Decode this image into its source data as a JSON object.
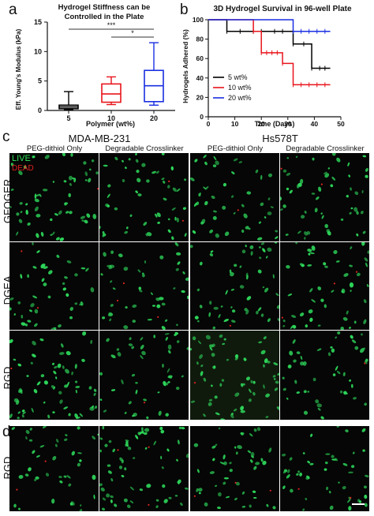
{
  "panel_labels": {
    "a": "a",
    "b": "b",
    "c": "c",
    "d": "d"
  },
  "chart_data": [
    {
      "type": "box",
      "title": "Hydrogel Stiffness can be Controlled in the Plate",
      "title_line1": "Hydrogel Stiffness can be",
      "title_line2": "Controlled in the Plate",
      "xlabel": "Polymer (wt%)",
      "ylabel": "Eff. Young's Modulus (kPa)",
      "ylim": [
        0,
        15
      ],
      "yticks": [
        "0",
        "5",
        "10",
        "15"
      ],
      "categories": [
        "5",
        "10",
        "20"
      ],
      "colors": [
        "#000000",
        "#e8141b",
        "#1a2fe0"
      ],
      "boxes": [
        {
          "category": "5",
          "min": 0.1,
          "q1": 0.3,
          "median": 0.6,
          "q3": 0.9,
          "max": 3.2
        },
        {
          "category": "10",
          "min": 1.0,
          "q1": 1.4,
          "median": 2.8,
          "q3": 4.5,
          "max": 5.7
        },
        {
          "category": "20",
          "min": 0.9,
          "q1": 1.5,
          "median": 4.2,
          "q3": 6.8,
          "max": 11.5
        }
      ],
      "significance": [
        {
          "from": "5",
          "to": "20",
          "label": "***"
        },
        {
          "from": "10",
          "to": "20",
          "label": "*"
        }
      ]
    },
    {
      "type": "line",
      "title": "3D Hydrogel Survival in 96-well Plate",
      "xlabel": "Time (Days)",
      "ylabel": "Hydrogels Adhered (%)",
      "xlim": [
        0,
        50
      ],
      "ylim": [
        0,
        100
      ],
      "xticks": [
        "0",
        "10",
        "20",
        "30",
        "40",
        "50"
      ],
      "yticks": [
        "0",
        "20",
        "40",
        "60",
        "80",
        "100"
      ],
      "legend_position": "lower-left",
      "series": [
        {
          "name": "5 wt%",
          "color": "#000000",
          "steps": [
            [
              0,
              100
            ],
            [
              7,
              88
            ],
            [
              32,
              75
            ],
            [
              39,
              50
            ],
            [
              46,
              50
            ]
          ],
          "censor_x": [
            7,
            12,
            17,
            20,
            25,
            28,
            32,
            36,
            39,
            42,
            44
          ]
        },
        {
          "name": "10 wt%",
          "color": "#e8141b",
          "steps": [
            [
              0,
              100
            ],
            [
              17,
              88
            ],
            [
              20,
              66
            ],
            [
              28,
              55
            ],
            [
              32,
              33
            ],
            [
              46,
              33
            ]
          ],
          "censor_x": [
            17,
            20,
            22,
            24,
            26,
            28,
            32,
            35,
            38,
            41,
            44
          ]
        },
        {
          "name": "20 wt%",
          "color": "#1a2fe0",
          "steps": [
            [
              0,
              100
            ],
            [
              32,
              88
            ],
            [
              46,
              88
            ]
          ],
          "censor_x": [
            32,
            35,
            38,
            41,
            44
          ]
        }
      ]
    }
  ],
  "micrographs": {
    "col_groups": [
      "MDA-MB-231",
      "Hs578T"
    ],
    "col_subtitles": [
      "PEG-dithiol Only",
      "Degradable Crosslinker",
      "PEG-dithiol Only",
      "Degradable Crosslinker"
    ],
    "row_labels": [
      "GFOGER",
      "DGEA",
      "RGD"
    ],
    "panel_d_row_label": "RGD",
    "legend_live": "LIVE",
    "legend_dead": "DEAD",
    "live_color": "#2ed65a",
    "dead_color": "#d8241e",
    "background_color": "#050605"
  }
}
